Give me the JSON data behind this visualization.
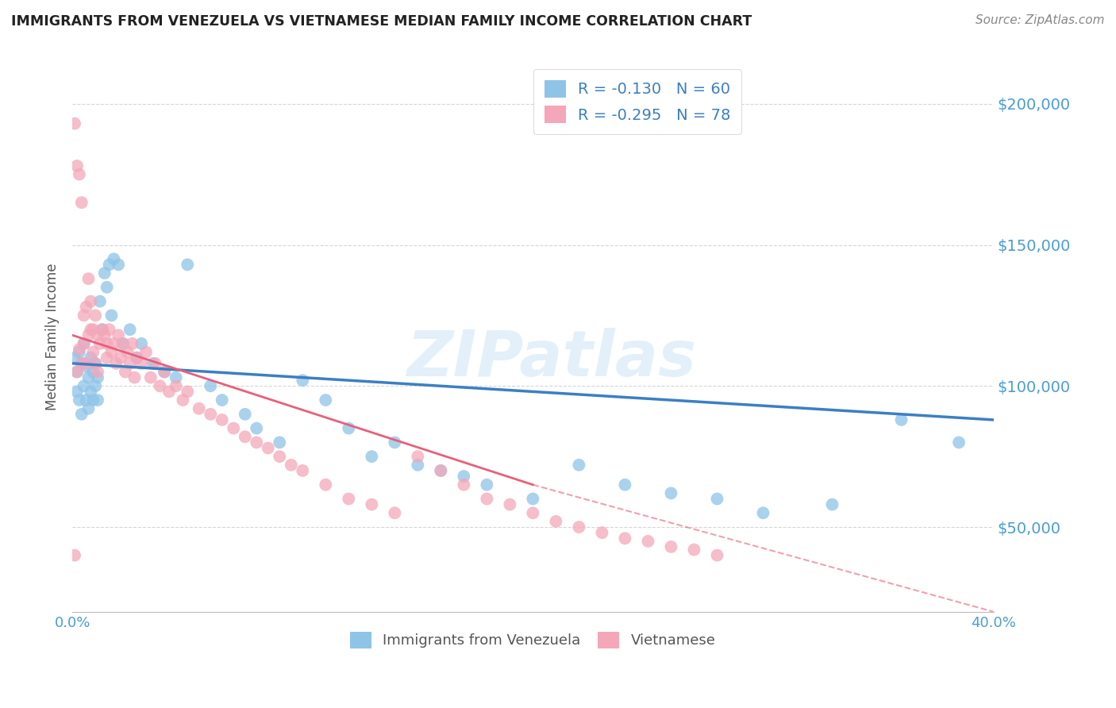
{
  "title": "IMMIGRANTS FROM VENEZUELA VS VIETNAMESE MEDIAN FAMILY INCOME CORRELATION CHART",
  "source": "Source: ZipAtlas.com",
  "ylabel": "Median Family Income",
  "xlim": [
    0.0,
    0.4
  ],
  "ylim": [
    20000,
    215000
  ],
  "yticks": [
    50000,
    100000,
    150000,
    200000
  ],
  "ytick_labels": [
    "$50,000",
    "$100,000",
    "$150,000",
    "$200,000"
  ],
  "xticks": [
    0.0,
    0.05,
    0.1,
    0.15,
    0.2,
    0.25,
    0.3,
    0.35,
    0.4
  ],
  "xtick_labels": [
    "0.0%",
    "",
    "",
    "",
    "",
    "",
    "",
    "",
    "40.0%"
  ],
  "legend_r1": "-0.130",
  "legend_n1": "60",
  "legend_r2": "-0.295",
  "legend_n2": "78",
  "color_blue": "#8ec4e8",
  "color_pink": "#f4a7b9",
  "color_blue_line": "#3b7fc4",
  "color_pink_line": "#e8607a",
  "color_axis_label": "#4b9cd3",
  "watermark": "ZIPatlas",
  "blue_x": [
    0.001,
    0.002,
    0.002,
    0.003,
    0.003,
    0.004,
    0.004,
    0.005,
    0.005,
    0.006,
    0.006,
    0.007,
    0.007,
    0.008,
    0.008,
    0.009,
    0.009,
    0.01,
    0.01,
    0.011,
    0.011,
    0.012,
    0.013,
    0.014,
    0.015,
    0.016,
    0.017,
    0.018,
    0.02,
    0.022,
    0.025,
    0.028,
    0.03,
    0.035,
    0.04,
    0.045,
    0.05,
    0.06,
    0.065,
    0.075,
    0.08,
    0.09,
    0.1,
    0.11,
    0.12,
    0.13,
    0.14,
    0.15,
    0.16,
    0.17,
    0.18,
    0.2,
    0.22,
    0.24,
    0.26,
    0.28,
    0.3,
    0.33,
    0.36,
    0.385
  ],
  "blue_y": [
    110000,
    105000,
    98000,
    112000,
    95000,
    108000,
    90000,
    115000,
    100000,
    107000,
    95000,
    103000,
    92000,
    110000,
    98000,
    105000,
    95000,
    108000,
    100000,
    103000,
    95000,
    130000,
    120000,
    140000,
    135000,
    143000,
    125000,
    145000,
    143000,
    115000,
    120000,
    110000,
    115000,
    108000,
    105000,
    103000,
    143000,
    100000,
    95000,
    90000,
    85000,
    80000,
    102000,
    95000,
    85000,
    75000,
    80000,
    72000,
    70000,
    68000,
    65000,
    60000,
    72000,
    65000,
    62000,
    60000,
    55000,
    58000,
    88000,
    80000
  ],
  "pink_x": [
    0.001,
    0.001,
    0.002,
    0.002,
    0.003,
    0.003,
    0.004,
    0.004,
    0.005,
    0.005,
    0.006,
    0.006,
    0.007,
    0.007,
    0.008,
    0.008,
    0.009,
    0.009,
    0.01,
    0.01,
    0.011,
    0.011,
    0.012,
    0.013,
    0.014,
    0.015,
    0.015,
    0.016,
    0.017,
    0.018,
    0.019,
    0.02,
    0.021,
    0.022,
    0.023,
    0.024,
    0.025,
    0.026,
    0.027,
    0.028,
    0.03,
    0.032,
    0.034,
    0.036,
    0.038,
    0.04,
    0.042,
    0.045,
    0.048,
    0.05,
    0.055,
    0.06,
    0.065,
    0.07,
    0.075,
    0.08,
    0.085,
    0.09,
    0.095,
    0.1,
    0.11,
    0.12,
    0.13,
    0.14,
    0.15,
    0.16,
    0.17,
    0.18,
    0.19,
    0.2,
    0.21,
    0.22,
    0.23,
    0.24,
    0.25,
    0.26,
    0.27,
    0.28
  ],
  "pink_y": [
    193000,
    40000,
    178000,
    105000,
    175000,
    113000,
    165000,
    108000,
    125000,
    115000,
    128000,
    108000,
    138000,
    118000,
    130000,
    120000,
    120000,
    112000,
    125000,
    108000,
    118000,
    105000,
    115000,
    120000,
    118000,
    115000,
    110000,
    120000,
    112000,
    115000,
    108000,
    118000,
    110000,
    115000,
    105000,
    112000,
    108000,
    115000,
    103000,
    110000,
    108000,
    112000,
    103000,
    108000,
    100000,
    105000,
    98000,
    100000,
    95000,
    98000,
    92000,
    90000,
    88000,
    85000,
    82000,
    80000,
    78000,
    75000,
    72000,
    70000,
    65000,
    60000,
    58000,
    55000,
    75000,
    70000,
    65000,
    60000,
    58000,
    55000,
    52000,
    50000,
    48000,
    46000,
    45000,
    43000,
    42000,
    40000
  ]
}
